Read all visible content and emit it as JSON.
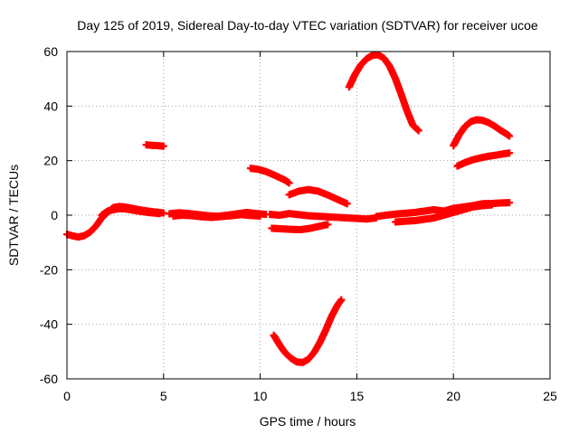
{
  "chart_data": {
    "type": "scatter",
    "title": "Day 125 of 2019, Sidereal Day-to-day VTEC variation (SDTVAR) for receiver ucoe",
    "xlabel": "GPS time / hours",
    "ylabel": "SDTVAR / TECUs",
    "xlim": [
      0,
      25
    ],
    "ylim": [
      -60,
      60
    ],
    "xticks": [
      0,
      5,
      10,
      15,
      20,
      25
    ],
    "yticks": [
      -60,
      -40,
      -20,
      0,
      20,
      40,
      60
    ],
    "xtick_labels": [
      "0",
      "5",
      "10",
      "15",
      "20",
      "25"
    ],
    "ytick_labels": [
      "-60",
      "-40",
      "-20",
      "0",
      "20",
      "40",
      "60"
    ],
    "grid": true,
    "marker": "plus",
    "series_color": "#ff0000",
    "series": [
      {
        "name": "arc-main-0",
        "x": [
          0.0,
          0.3,
          0.6,
          0.9,
          1.2,
          1.5,
          1.8,
          2.1,
          2.4,
          2.7,
          3.0,
          3.3,
          3.6,
          3.9,
          4.2,
          4.5,
          4.8,
          5.0
        ],
        "y": [
          -7.0,
          -7.6,
          -8.0,
          -7.5,
          -6.2,
          -4.0,
          -1.0,
          1.0,
          2.8,
          3.2,
          3.0,
          2.6,
          2.2,
          1.8,
          1.5,
          1.2,
          1.0,
          0.8
        ]
      },
      {
        "name": "arc-main-0b",
        "x": [
          1.8,
          2.1,
          2.4,
          2.7,
          3.0,
          3.3,
          3.6,
          3.9,
          4.2,
          4.5,
          4.8
        ],
        "y": [
          0.0,
          1.5,
          2.0,
          2.4,
          2.3,
          2.0,
          1.6,
          1.3,
          1.0,
          0.8,
          0.6
        ]
      },
      {
        "name": "arc-main-1",
        "x": [
          5.3,
          5.8,
          6.3,
          6.8,
          7.3,
          7.8,
          8.3,
          8.8,
          9.3,
          9.8,
          10.3
        ],
        "y": [
          0.5,
          0.9,
          0.6,
          0.2,
          -0.2,
          -0.4,
          0.0,
          0.5,
          1.0,
          0.6,
          0.3
        ]
      },
      {
        "name": "arc-main-1b",
        "x": [
          5.5,
          6.0,
          6.5,
          7.0,
          7.5,
          8.0,
          8.5,
          9.0,
          9.5,
          10.0
        ],
        "y": [
          -0.3,
          0.0,
          -0.2,
          -0.6,
          -0.8,
          -0.5,
          -0.2,
          0.2,
          -0.1,
          -0.3
        ]
      },
      {
        "name": "arc-main-2",
        "x": [
          10.5,
          11.0,
          11.5,
          12.0,
          12.5,
          13.0,
          13.5,
          14.0,
          14.5,
          15.0,
          15.5,
          16.0
        ],
        "y": [
          0.3,
          0.0,
          0.6,
          0.2,
          -0.2,
          -0.4,
          -0.6,
          -0.8,
          -1.0,
          -1.2,
          -1.4,
          -1.0
        ]
      },
      {
        "name": "arc-main-3",
        "x": [
          16.0,
          16.5,
          17.0,
          17.5,
          18.0,
          18.5,
          19.0,
          19.5,
          20.0,
          20.5,
          21.0,
          21.5,
          22.0,
          22.5,
          22.9
        ],
        "y": [
          -0.5,
          0.0,
          0.4,
          0.7,
          1.0,
          1.5,
          2.0,
          1.5,
          2.5,
          3.0,
          3.5,
          4.2,
          4.3,
          4.5,
          4.6
        ]
      },
      {
        "name": "arc-main-3b",
        "x": [
          17.0,
          17.5,
          18.0,
          18.5,
          19.0,
          19.5,
          20.0,
          20.5,
          21.0,
          21.5,
          22.0
        ],
        "y": [
          -2.5,
          -2.2,
          -2.0,
          -1.5,
          -1.0,
          0.0,
          1.0,
          2.0,
          3.0,
          3.5,
          3.8
        ]
      },
      {
        "name": "arc-short-26",
        "x": [
          4.1,
          4.4,
          4.7,
          5.0
        ],
        "y": [
          25.8,
          25.6,
          25.5,
          25.3
        ]
      },
      {
        "name": "arc-17",
        "x": [
          9.5,
          9.9,
          10.3,
          10.7,
          11.0,
          11.3,
          11.5
        ],
        "y": [
          17.2,
          16.8,
          16.0,
          14.8,
          13.8,
          12.8,
          11.8
        ]
      },
      {
        "name": "arc-bump-9",
        "x": [
          11.5,
          12.0,
          12.5,
          13.0,
          13.5,
          14.0,
          14.5
        ],
        "y": [
          7.5,
          8.8,
          9.4,
          8.8,
          7.4,
          5.8,
          4.2
        ]
      },
      {
        "name": "arc-neg5",
        "x": [
          10.6,
          11.1,
          11.6,
          12.1,
          12.6,
          13.1,
          13.5
        ],
        "y": [
          -4.8,
          -5.0,
          -5.2,
          -5.3,
          -4.8,
          -4.0,
          -3.4
        ]
      },
      {
        "name": "arc-dip-54",
        "x": [
          10.7,
          11.0,
          11.3,
          11.6,
          11.9,
          12.2,
          12.5,
          12.8,
          13.1,
          13.4,
          13.7,
          14.0,
          14.2
        ],
        "y": [
          -44.0,
          -47.5,
          -50.5,
          -52.5,
          -53.8,
          -54.0,
          -52.8,
          -50.2,
          -46.5,
          -42.0,
          -37.0,
          -33.0,
          -31.0
        ]
      },
      {
        "name": "arc-peak-58",
        "x": [
          14.6,
          14.9,
          15.2,
          15.5,
          15.8,
          16.1,
          16.4,
          16.7,
          17.0,
          17.3,
          17.6,
          17.9,
          18.2
        ],
        "y": [
          47.0,
          51.5,
          55.0,
          57.3,
          58.6,
          58.8,
          57.6,
          54.6,
          50.0,
          44.3,
          38.2,
          33.0,
          31.0
        ]
      },
      {
        "name": "arc-peak-35",
        "x": [
          20.0,
          20.3,
          20.6,
          20.9,
          21.2,
          21.5,
          21.8,
          22.1,
          22.4,
          22.7,
          22.9
        ],
        "y": [
          25.5,
          29.5,
          32.5,
          34.3,
          35.0,
          34.8,
          34.0,
          32.8,
          31.3,
          30.0,
          29.0
        ]
      },
      {
        "name": "arc-rise-23",
        "x": [
          20.2,
          20.6,
          21.0,
          21.4,
          21.8,
          22.2,
          22.6,
          22.9
        ],
        "y": [
          18.0,
          19.3,
          20.3,
          21.0,
          21.6,
          22.0,
          22.5,
          22.8
        ]
      }
    ]
  }
}
